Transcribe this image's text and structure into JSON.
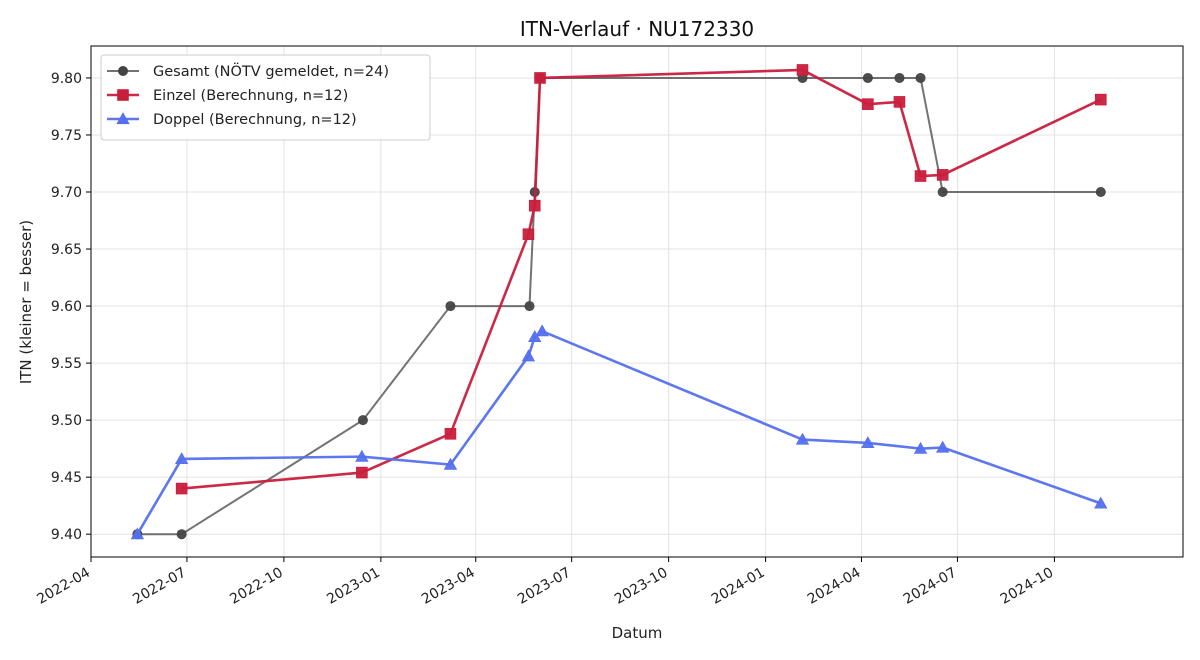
{
  "chart_data": {
    "type": "line",
    "title": "ITN-Verlauf · NU172330",
    "xlabel": "Datum",
    "ylabel": "ITN  (kleiner = besser)",
    "x_axis": "date",
    "xlim": [
      "2022-04-01",
      "2025-01-31"
    ],
    "ylim": [
      9.38,
      9.828
    ],
    "x_ticks": [
      "2022-04-01",
      "2022-07-01",
      "2022-10-01",
      "2023-01-01",
      "2023-04-01",
      "2023-07-01",
      "2023-10-01",
      "2024-01-01",
      "2024-04-01",
      "2024-07-01",
      "2024-10-01"
    ],
    "x_tick_labels": [
      "2022-04",
      "2022-07",
      "2022-10",
      "2023-01",
      "2023-04",
      "2023-07",
      "2023-10",
      "2024-01",
      "2024-04",
      "2024-07",
      "2024-10"
    ],
    "y_ticks": [
      9.4,
      9.45,
      9.5,
      9.55,
      9.6,
      9.65,
      9.7,
      9.75,
      9.8
    ],
    "y_tick_labels": [
      "9.40",
      "9.45",
      "9.50",
      "9.55",
      "9.60",
      "9.65",
      "9.70",
      "9.75",
      "9.80"
    ],
    "grid": true,
    "legend_position": "upper-left",
    "series": [
      {
        "name": "Gesamt (NÖTV gemeldet, n=24)",
        "color": "#444444",
        "marker": "circle",
        "points": [
          {
            "x": "2022-05-15",
            "y": 9.4
          },
          {
            "x": "2022-06-26",
            "y": 9.4
          },
          {
            "x": "2022-12-15",
            "y": 9.5
          },
          {
            "x": "2023-03-08",
            "y": 9.6
          },
          {
            "x": "2023-05-22",
            "y": 9.6
          },
          {
            "x": "2023-05-27",
            "y": 9.7
          },
          {
            "x": "2023-06-01",
            "y": 9.8
          },
          {
            "x": "2024-02-05",
            "y": 9.8
          },
          {
            "x": "2024-04-07",
            "y": 9.8
          },
          {
            "x": "2024-05-07",
            "y": 9.8
          },
          {
            "x": "2024-05-27",
            "y": 9.8
          },
          {
            "x": "2024-06-17",
            "y": 9.7
          },
          {
            "x": "2024-11-14",
            "y": 9.7
          }
        ]
      },
      {
        "name": "Einzel (Berechnung, n=12)",
        "color": "#c81e3c",
        "marker": "square",
        "points": [
          {
            "x": "2022-06-26",
            "y": 9.44
          },
          {
            "x": "2022-12-14",
            "y": 9.454
          },
          {
            "x": "2023-03-08",
            "y": 9.488
          },
          {
            "x": "2023-05-21",
            "y": 9.663
          },
          {
            "x": "2023-05-27",
            "y": 9.688
          },
          {
            "x": "2023-06-01",
            "y": 9.8
          },
          {
            "x": "2024-02-05",
            "y": 9.807
          },
          {
            "x": "2024-04-07",
            "y": 9.777
          },
          {
            "x": "2024-05-07",
            "y": 9.779
          },
          {
            "x": "2024-05-27",
            "y": 9.714
          },
          {
            "x": "2024-06-17",
            "y": 9.715
          },
          {
            "x": "2024-11-14",
            "y": 9.781
          }
        ]
      },
      {
        "name": "Doppel (Berechnung, n=12)",
        "color": "#5470ee",
        "marker": "triangle",
        "points": [
          {
            "x": "2022-05-15",
            "y": 9.4
          },
          {
            "x": "2022-06-26",
            "y": 9.466
          },
          {
            "x": "2022-12-14",
            "y": 9.468
          },
          {
            "x": "2023-03-08",
            "y": 9.461
          },
          {
            "x": "2023-05-21",
            "y": 9.556
          },
          {
            "x": "2023-05-27",
            "y": 9.573
          },
          {
            "x": "2023-06-03",
            "y": 9.578
          },
          {
            "x": "2024-02-05",
            "y": 9.483
          },
          {
            "x": "2024-04-07",
            "y": 9.48
          },
          {
            "x": "2024-05-27",
            "y": 9.475
          },
          {
            "x": "2024-06-17",
            "y": 9.476
          },
          {
            "x": "2024-11-14",
            "y": 9.427
          }
        ]
      }
    ]
  }
}
